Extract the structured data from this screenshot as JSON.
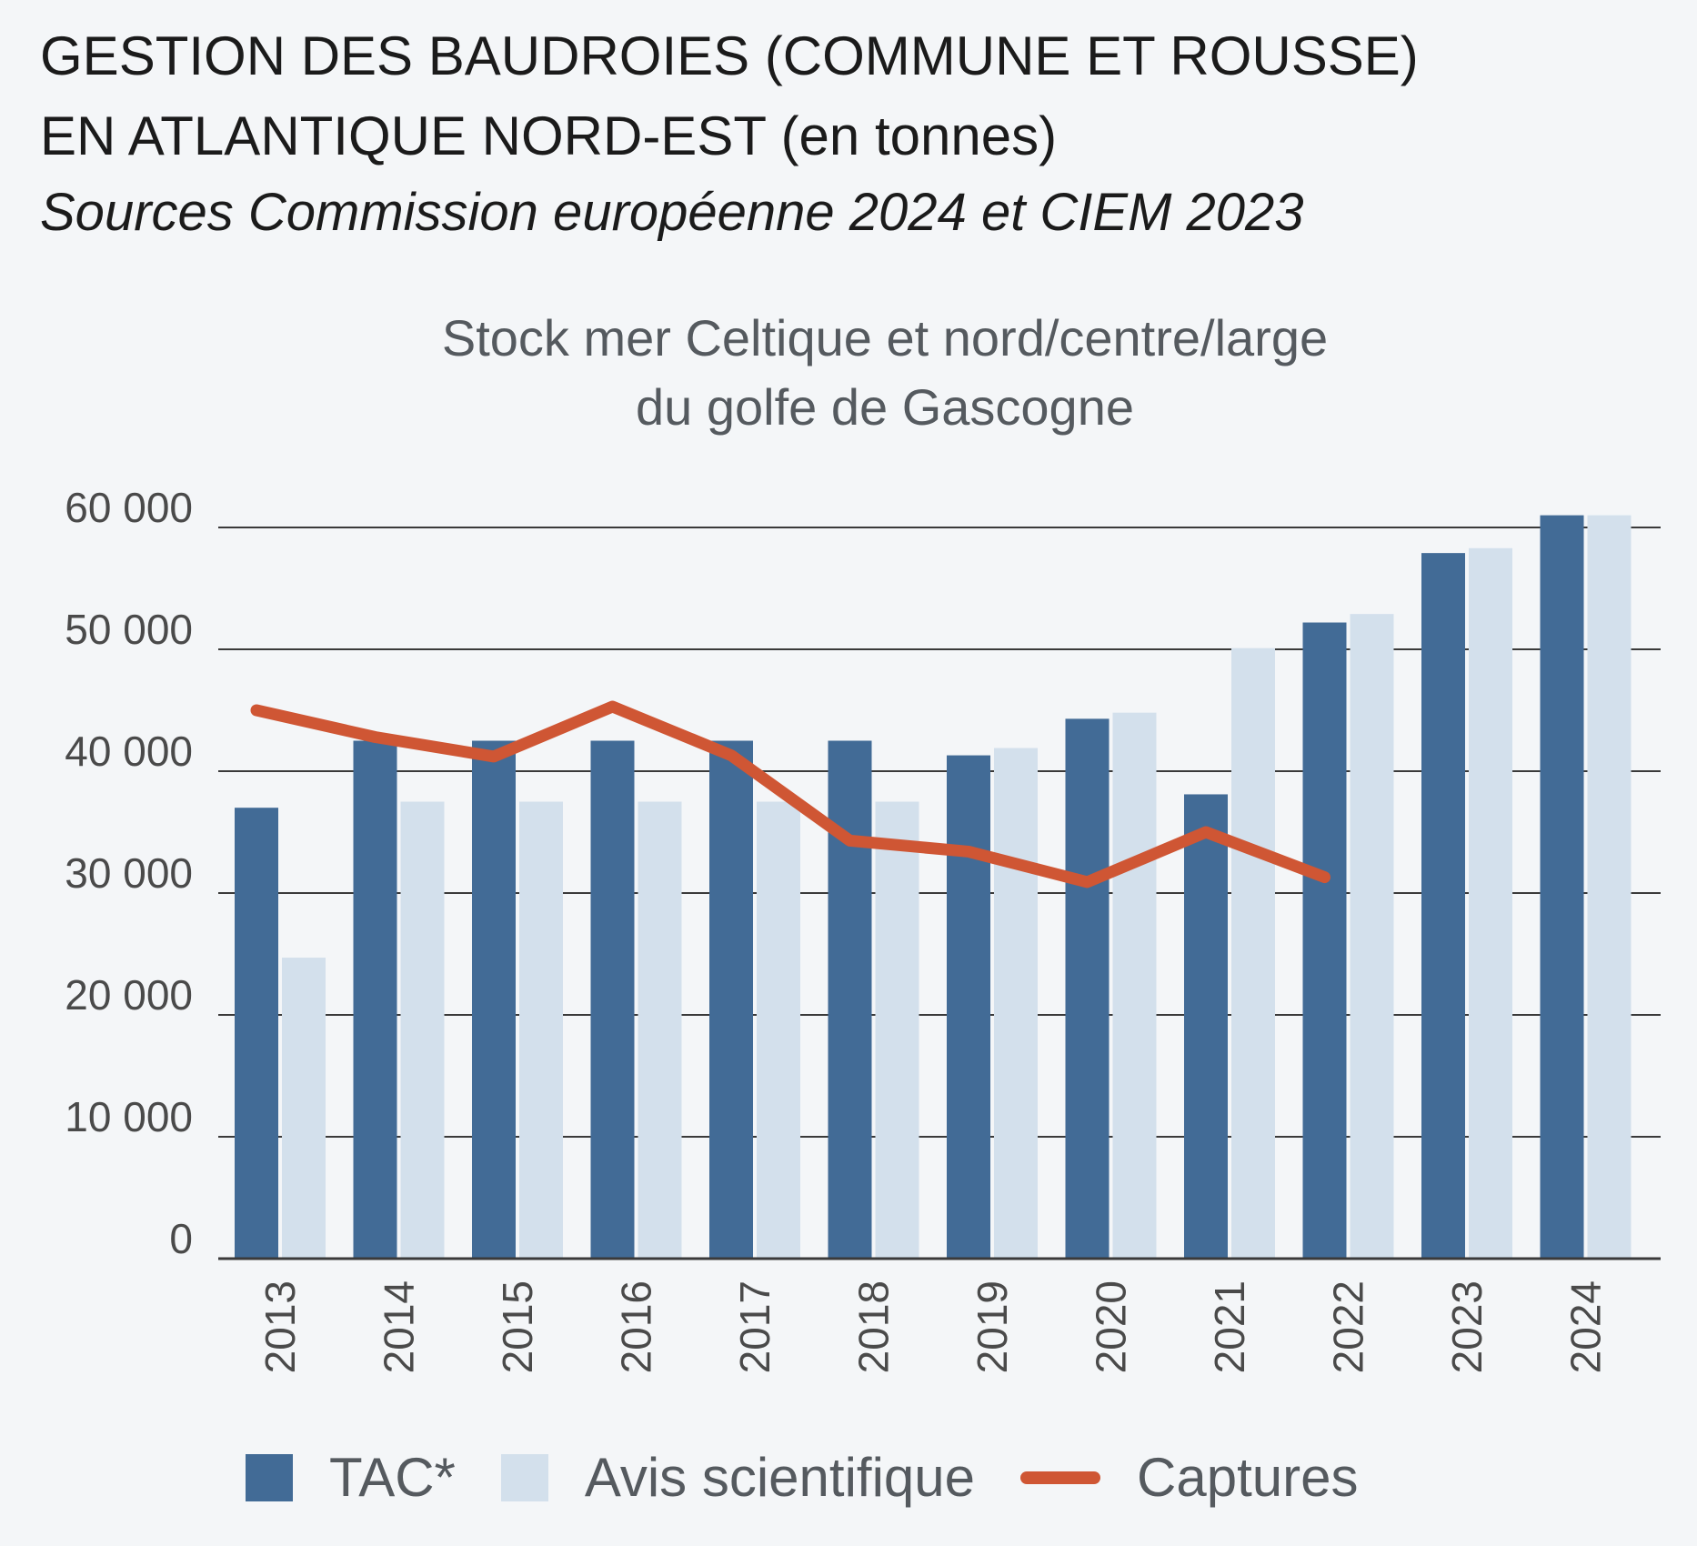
{
  "header": {
    "title_line1": "GESTION DES BAUDROIES (COMMUNE ET ROUSSE)",
    "title_line2_main": "EN ATLANTIQUE NORD-EST",
    "title_line2_unit": "(en tonnes)",
    "subtitle": "Sources Commission européenne 2024 et CIEM 2023"
  },
  "chart_data": {
    "type": "bar",
    "title_line1": "Stock mer Celtique et nord/centre/large",
    "title_line2": "du golfe de Gascogne",
    "categories": [
      "2013",
      "2014",
      "2015",
      "2016",
      "2017",
      "2018",
      "2019",
      "2020",
      "2021",
      "2022",
      "2023",
      "2024"
    ],
    "ylim": [
      0,
      60000
    ],
    "yticks": [
      0,
      10000,
      20000,
      30000,
      40000,
      50000,
      60000
    ],
    "ytick_labels": [
      "0",
      "10 000",
      "20 000",
      "30 000",
      "40 000",
      "50 000",
      "60 000"
    ],
    "grid": true,
    "legend_position": "bottom",
    "series": [
      {
        "name": "TAC*",
        "kind": "bar",
        "color": "#426b96",
        "values": [
          37000,
          42500,
          42500,
          42500,
          42500,
          42500,
          41300,
          44300,
          38100,
          52200,
          57900,
          61000
        ]
      },
      {
        "name": "Avis scientifique",
        "kind": "bar",
        "color": "#d3e0ec",
        "values": [
          24700,
          37500,
          37500,
          37500,
          37500,
          37500,
          41900,
          44800,
          50100,
          52900,
          58300,
          61000
        ]
      },
      {
        "name": "Captures",
        "kind": "line",
        "color": "#cf5634",
        "values": [
          45000,
          42800,
          41200,
          45300,
          41300,
          34300,
          33400,
          30900,
          35000,
          31300,
          null,
          null
        ]
      }
    ]
  },
  "legend": {
    "items": [
      "TAC*",
      "Avis scientifique",
      "Captures"
    ]
  }
}
